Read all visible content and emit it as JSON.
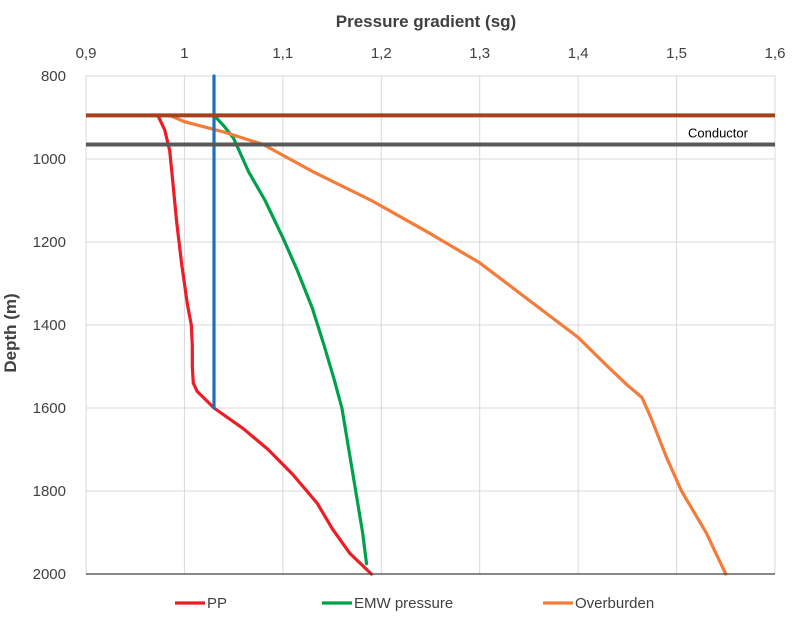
{
  "chart_data": {
    "type": "line",
    "title": "",
    "xlabel": "Pressure gradient (sg)",
    "ylabel": "Depth (m)",
    "xlim": [
      0.9,
      1.6
    ],
    "ylim": [
      800,
      2000
    ],
    "y_reversed": true,
    "x_axis_position": "top",
    "x_ticks": [
      0.9,
      1.0,
      1.1,
      1.2,
      1.3,
      1.4,
      1.5,
      1.6
    ],
    "x_tick_labels": [
      "0,9",
      "1",
      "1,1",
      "1,2",
      "1,3",
      "1,4",
      "1,5",
      "1,6"
    ],
    "y_ticks": [
      800,
      1000,
      1200,
      1400,
      1600,
      1800,
      2000
    ],
    "y_tick_labels": [
      "800",
      "1000",
      "1200",
      "1400",
      "1600",
      "1800",
      "2000"
    ],
    "grid": true,
    "legend": "bottom",
    "series": [
      {
        "name": "PP",
        "color": "#ee1c25",
        "in_legend": true,
        "points": [
          [
            0.973,
            895
          ],
          [
            0.98,
            930
          ],
          [
            0.985,
            980
          ],
          [
            0.988,
            1050
          ],
          [
            0.992,
            1150
          ],
          [
            0.997,
            1250
          ],
          [
            1.003,
            1350
          ],
          [
            1.007,
            1400
          ],
          [
            1.008,
            1450
          ],
          [
            1.008,
            1500
          ],
          [
            1.009,
            1540
          ],
          [
            1.013,
            1560
          ],
          [
            1.03,
            1600
          ],
          [
            1.06,
            1650
          ],
          [
            1.085,
            1700
          ],
          [
            1.11,
            1760
          ],
          [
            1.135,
            1830
          ],
          [
            1.15,
            1890
          ],
          [
            1.168,
            1950
          ],
          [
            1.19,
            2000
          ]
        ]
      },
      {
        "name": "EMW pressure",
        "color": "#00a14b",
        "in_legend": true,
        "points": [
          [
            1.03,
            895
          ],
          [
            1.04,
            920
          ],
          [
            1.05,
            950
          ],
          [
            1.065,
            1030
          ],
          [
            1.082,
            1100
          ],
          [
            1.1,
            1190
          ],
          [
            1.115,
            1270
          ],
          [
            1.13,
            1360
          ],
          [
            1.142,
            1450
          ],
          [
            1.152,
            1530
          ],
          [
            1.16,
            1600
          ],
          [
            1.167,
            1700
          ],
          [
            1.174,
            1800
          ],
          [
            1.181,
            1900
          ],
          [
            1.185,
            1975
          ]
        ]
      },
      {
        "name": "Overburden",
        "color": "#f47b38",
        "in_legend": true,
        "points": [
          [
            0.985,
            895
          ],
          [
            1.0,
            910
          ],
          [
            1.04,
            935
          ],
          [
            1.08,
            965
          ],
          [
            1.13,
            1030
          ],
          [
            1.19,
            1100
          ],
          [
            1.25,
            1180
          ],
          [
            1.3,
            1250
          ],
          [
            1.35,
            1340
          ],
          [
            1.4,
            1430
          ],
          [
            1.43,
            1500
          ],
          [
            1.45,
            1545
          ],
          [
            1.465,
            1575
          ],
          [
            1.475,
            1630
          ],
          [
            1.49,
            1720
          ],
          [
            1.505,
            1800
          ],
          [
            1.53,
            1900
          ],
          [
            1.54,
            1950
          ],
          [
            1.55,
            2000
          ]
        ]
      },
      {
        "name": "",
        "color": "#1f6fb9",
        "in_legend": false,
        "points": [
          [
            1.03,
            800
          ],
          [
            1.03,
            1600
          ]
        ]
      }
    ],
    "hlines": [
      {
        "y": 895,
        "label": "",
        "color": "#a5411b"
      },
      {
        "y": 965,
        "label": "Conductor",
        "color": "#595959"
      }
    ]
  }
}
